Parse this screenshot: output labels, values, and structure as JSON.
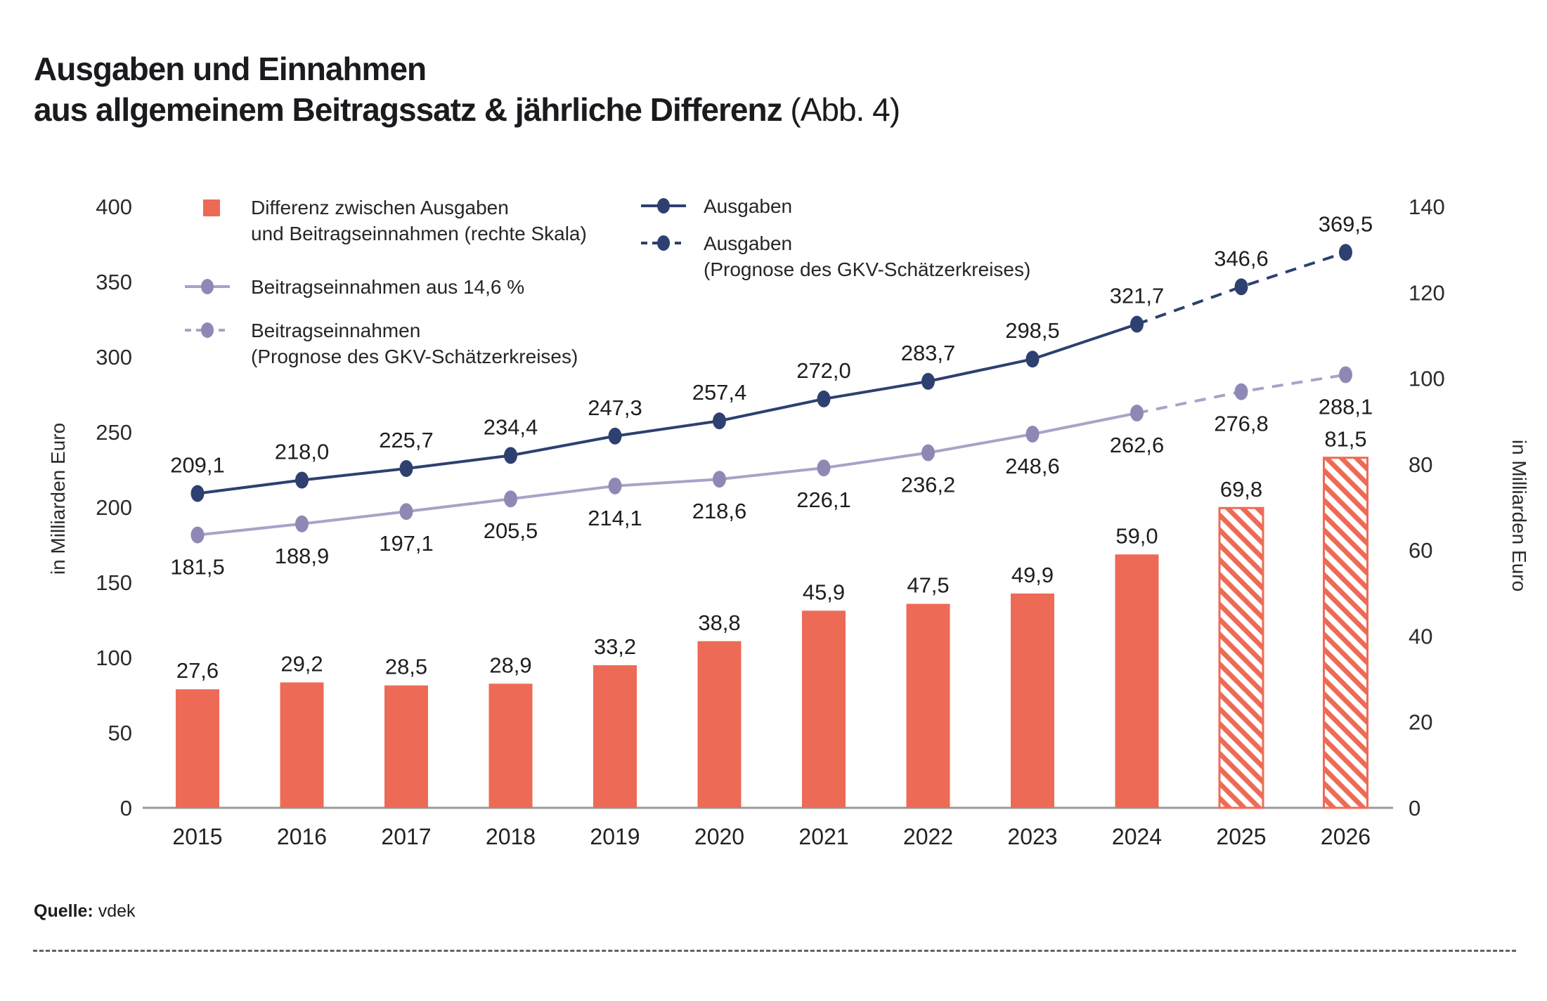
{
  "title": {
    "line1": "Ausgaben und Einnahmen",
    "line2_bold": "aus allgemeinem Beitragssatz & jährliche Differenz",
    "line2_regular": " (Abb. 4)"
  },
  "legend": {
    "difference": {
      "line1": "Differenz zwischen Ausgaben",
      "line2": "und Beitragseinnahmen (rechte Skala)"
    },
    "einnahmen": {
      "label": "Beitragseinnahmen aus 14,6 %"
    },
    "einnahmen_prognose": {
      "line1": "Beitragseinnahmen",
      "line2": "(Prognose des GKV-Schätzerkreises)"
    },
    "ausgaben": {
      "label": "Ausgaben"
    },
    "ausgaben_prognose": {
      "line1": "Ausgaben",
      "line2": "(Prognose des GKV-Schätzerkreises)"
    }
  },
  "source": {
    "label": "Quelle:",
    "value": "vdek"
  },
  "chart_data": {
    "type": "bar+line",
    "categories": [
      "2015",
      "2016",
      "2017",
      "2018",
      "2019",
      "2020",
      "2021",
      "2022",
      "2023",
      "2024",
      "2025",
      "2026"
    ],
    "series": [
      {
        "key": "ausgaben",
        "name": "Ausgaben",
        "type": "line",
        "axis": "left",
        "color": "#2D4070",
        "label_position": "above",
        "prognose_from_index": 9,
        "values": [
          209.1,
          218.0,
          225.7,
          234.4,
          247.3,
          257.4,
          272.0,
          283.7,
          298.5,
          321.7,
          346.6,
          369.5
        ]
      },
      {
        "key": "beitragseinnahmen",
        "name": "Beitragseinnahmen aus 14,6 %",
        "type": "line",
        "axis": "left",
        "color": "#A7A3C8",
        "dot_color": "#8E89B4",
        "label_position": "below",
        "prognose_from_index": 9,
        "values": [
          181.5,
          188.9,
          197.1,
          205.5,
          214.1,
          218.6,
          226.1,
          236.2,
          248.6,
          262.6,
          276.8,
          288.1
        ]
      },
      {
        "key": "differenz",
        "name": "Differenz zwischen Ausgaben und Beitragseinnahmen",
        "type": "bar",
        "axis": "right",
        "color": "#ED6B56",
        "prognose_from_index": 10,
        "values": [
          27.6,
          29.2,
          28.5,
          28.9,
          33.2,
          38.8,
          45.9,
          47.5,
          49.9,
          59.0,
          69.8,
          81.5
        ]
      }
    ],
    "left_axis": {
      "label": "in Milliarden Euro",
      "max": 400,
      "ticks": [
        0,
        50,
        100,
        150,
        200,
        250,
        300,
        350,
        400
      ]
    },
    "right_axis": {
      "label": "in Milliarden Euro",
      "max": 140,
      "ticks": [
        0,
        20,
        40,
        60,
        80,
        100,
        120,
        140
      ]
    },
    "decimal_separator": ",",
    "grid": false,
    "legend_position": "top-left"
  }
}
